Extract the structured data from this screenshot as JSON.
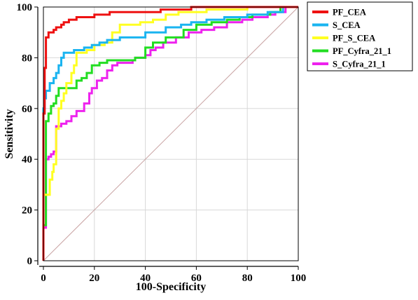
{
  "chart_data": {
    "type": "line",
    "xlabel": "100-Specificity",
    "ylabel": "Sensitivity",
    "xlim": [
      0,
      100
    ],
    "ylim": [
      0,
      100
    ],
    "xticks": [
      0,
      20,
      40,
      60,
      80,
      100
    ],
    "yticks": [
      0,
      20,
      40,
      60,
      80,
      100
    ],
    "grid": true,
    "legend": "right",
    "diagonal_color": "#c9a3a3",
    "series": [
      {
        "name": "PF_CEA",
        "color": "#ee1111",
        "points": [
          [
            0,
            0
          ],
          [
            0,
            58
          ],
          [
            0.5,
            58
          ],
          [
            0.5,
            76
          ],
          [
            1,
            76
          ],
          [
            1,
            88
          ],
          [
            2,
            88
          ],
          [
            2,
            90
          ],
          [
            4,
            90
          ],
          [
            4,
            91
          ],
          [
            5,
            91
          ],
          [
            5,
            92
          ],
          [
            7,
            92
          ],
          [
            7,
            93
          ],
          [
            8,
            93
          ],
          [
            8,
            94
          ],
          [
            10,
            94
          ],
          [
            10,
            95
          ],
          [
            13,
            95
          ],
          [
            13,
            96
          ],
          [
            20,
            96
          ],
          [
            20,
            97
          ],
          [
            26,
            97
          ],
          [
            26,
            98
          ],
          [
            46,
            98
          ],
          [
            46,
            99
          ],
          [
            58,
            99
          ],
          [
            58,
            100
          ],
          [
            100,
            100
          ]
        ]
      },
      {
        "name": "S_CEA",
        "color": "#1ab4f0",
        "points": [
          [
            0,
            0
          ],
          [
            0,
            60
          ],
          [
            0.5,
            60
          ],
          [
            0.5,
            64
          ],
          [
            1,
            64
          ],
          [
            1,
            67
          ],
          [
            2.5,
            67
          ],
          [
            2.5,
            70
          ],
          [
            4,
            70
          ],
          [
            4,
            72
          ],
          [
            5,
            72
          ],
          [
            5,
            74
          ],
          [
            6,
            74
          ],
          [
            6,
            77
          ],
          [
            7,
            77
          ],
          [
            7,
            80
          ],
          [
            8,
            80
          ],
          [
            8,
            82
          ],
          [
            12,
            82
          ],
          [
            12,
            83
          ],
          [
            16,
            83
          ],
          [
            16,
            84
          ],
          [
            19,
            84
          ],
          [
            19,
            85
          ],
          [
            22,
            85
          ],
          [
            22,
            86
          ],
          [
            25,
            86
          ],
          [
            25,
            87
          ],
          [
            30,
            87
          ],
          [
            30,
            88
          ],
          [
            40,
            88
          ],
          [
            40,
            90
          ],
          [
            48,
            90
          ],
          [
            48,
            92
          ],
          [
            54,
            92
          ],
          [
            54,
            93
          ],
          [
            58,
            93
          ],
          [
            58,
            94
          ],
          [
            64,
            94
          ],
          [
            64,
            95
          ],
          [
            71,
            95
          ],
          [
            71,
            96
          ],
          [
            80,
            96
          ],
          [
            80,
            97
          ],
          [
            88,
            97
          ],
          [
            88,
            98
          ],
          [
            94,
            98
          ],
          [
            94,
            100
          ],
          [
            100,
            100
          ]
        ]
      },
      {
        "name": "PF_S_CEA",
        "color": "#ffff22",
        "points": [
          [
            0,
            0
          ],
          [
            0,
            26
          ],
          [
            2.5,
            26
          ],
          [
            2.5,
            32
          ],
          [
            3.5,
            32
          ],
          [
            3.5,
            35
          ],
          [
            4,
            35
          ],
          [
            4,
            38
          ],
          [
            5,
            38
          ],
          [
            5,
            52
          ],
          [
            6,
            52
          ],
          [
            6,
            60
          ],
          [
            7,
            60
          ],
          [
            7,
            63
          ],
          [
            8,
            63
          ],
          [
            8,
            66
          ],
          [
            9,
            66
          ],
          [
            9,
            70
          ],
          [
            11,
            70
          ],
          [
            11,
            74
          ],
          [
            12,
            74
          ],
          [
            12,
            77
          ],
          [
            13,
            77
          ],
          [
            13,
            82
          ],
          [
            17,
            82
          ],
          [
            17,
            83
          ],
          [
            20,
            83
          ],
          [
            20,
            85
          ],
          [
            24,
            85
          ],
          [
            24,
            86
          ],
          [
            27,
            86
          ],
          [
            27,
            90
          ],
          [
            30,
            90
          ],
          [
            30,
            93
          ],
          [
            38,
            93
          ],
          [
            38,
            94
          ],
          [
            43,
            94
          ],
          [
            43,
            95
          ],
          [
            48,
            95
          ],
          [
            48,
            97
          ],
          [
            53,
            97
          ],
          [
            53,
            98
          ],
          [
            64,
            98
          ],
          [
            64,
            99
          ],
          [
            80,
            99
          ],
          [
            80,
            100
          ],
          [
            100,
            100
          ]
        ]
      },
      {
        "name": "PF_Cyfra_21_1",
        "color": "#22dd22",
        "points": [
          [
            0,
            0
          ],
          [
            0,
            14
          ],
          [
            1,
            14
          ],
          [
            1,
            55
          ],
          [
            2,
            55
          ],
          [
            2,
            58
          ],
          [
            3,
            58
          ],
          [
            3,
            61
          ],
          [
            4,
            61
          ],
          [
            4,
            62
          ],
          [
            5,
            62
          ],
          [
            5,
            65
          ],
          [
            6,
            65
          ],
          [
            6,
            68
          ],
          [
            13,
            68
          ],
          [
            13,
            71
          ],
          [
            15,
            71
          ],
          [
            15,
            72
          ],
          [
            17,
            72
          ],
          [
            17,
            74
          ],
          [
            19,
            74
          ],
          [
            19,
            77
          ],
          [
            22,
            77
          ],
          [
            22,
            78
          ],
          [
            25,
            78
          ],
          [
            25,
            79
          ],
          [
            36,
            79
          ],
          [
            36,
            80
          ],
          [
            40,
            80
          ],
          [
            40,
            84
          ],
          [
            43,
            84
          ],
          [
            43,
            86
          ],
          [
            48,
            86
          ],
          [
            48,
            88
          ],
          [
            55,
            88
          ],
          [
            55,
            91
          ],
          [
            60,
            91
          ],
          [
            60,
            93
          ],
          [
            66,
            93
          ],
          [
            66,
            94
          ],
          [
            72,
            94
          ],
          [
            72,
            95
          ],
          [
            77,
            95
          ],
          [
            77,
            96
          ],
          [
            82,
            96
          ],
          [
            82,
            97
          ],
          [
            89,
            97
          ],
          [
            89,
            98
          ],
          [
            93,
            98
          ],
          [
            93,
            100
          ],
          [
            100,
            100
          ]
        ]
      },
      {
        "name": "S_Cyfra_21_1",
        "color": "#ee22ee",
        "points": [
          [
            0,
            0
          ],
          [
            0,
            13
          ],
          [
            1,
            13
          ],
          [
            1,
            40
          ],
          [
            2,
            40
          ],
          [
            2,
            41
          ],
          [
            3,
            41
          ],
          [
            3,
            42
          ],
          [
            4,
            42
          ],
          [
            4,
            43
          ],
          [
            5,
            43
          ],
          [
            5,
            53
          ],
          [
            7,
            53
          ],
          [
            7,
            54
          ],
          [
            9,
            54
          ],
          [
            9,
            55
          ],
          [
            11,
            55
          ],
          [
            11,
            57
          ],
          [
            13,
            57
          ],
          [
            13,
            59
          ],
          [
            16,
            59
          ],
          [
            16,
            62
          ],
          [
            18,
            62
          ],
          [
            18,
            66
          ],
          [
            19,
            66
          ],
          [
            19,
            68
          ],
          [
            21,
            68
          ],
          [
            21,
            71
          ],
          [
            23,
            71
          ],
          [
            23,
            72
          ],
          [
            25,
            72
          ],
          [
            25,
            75
          ],
          [
            27,
            75
          ],
          [
            27,
            77
          ],
          [
            29,
            77
          ],
          [
            29,
            78
          ],
          [
            35,
            78
          ],
          [
            35,
            79
          ],
          [
            36,
            79
          ],
          [
            36,
            80
          ],
          [
            40,
            80
          ],
          [
            40,
            81
          ],
          [
            42,
            81
          ],
          [
            42,
            83
          ],
          [
            44,
            83
          ],
          [
            44,
            84
          ],
          [
            47,
            84
          ],
          [
            47,
            86
          ],
          [
            52,
            86
          ],
          [
            52,
            88
          ],
          [
            57,
            88
          ],
          [
            57,
            90
          ],
          [
            62,
            90
          ],
          [
            62,
            91
          ],
          [
            67,
            91
          ],
          [
            67,
            92
          ],
          [
            72,
            92
          ],
          [
            72,
            94
          ],
          [
            78,
            94
          ],
          [
            78,
            95
          ],
          [
            82,
            95
          ],
          [
            82,
            96
          ],
          [
            88,
            96
          ],
          [
            88,
            97
          ],
          [
            91,
            97
          ],
          [
            91,
            98
          ],
          [
            95,
            98
          ],
          [
            95,
            100
          ],
          [
            100,
            100
          ]
        ]
      }
    ]
  }
}
